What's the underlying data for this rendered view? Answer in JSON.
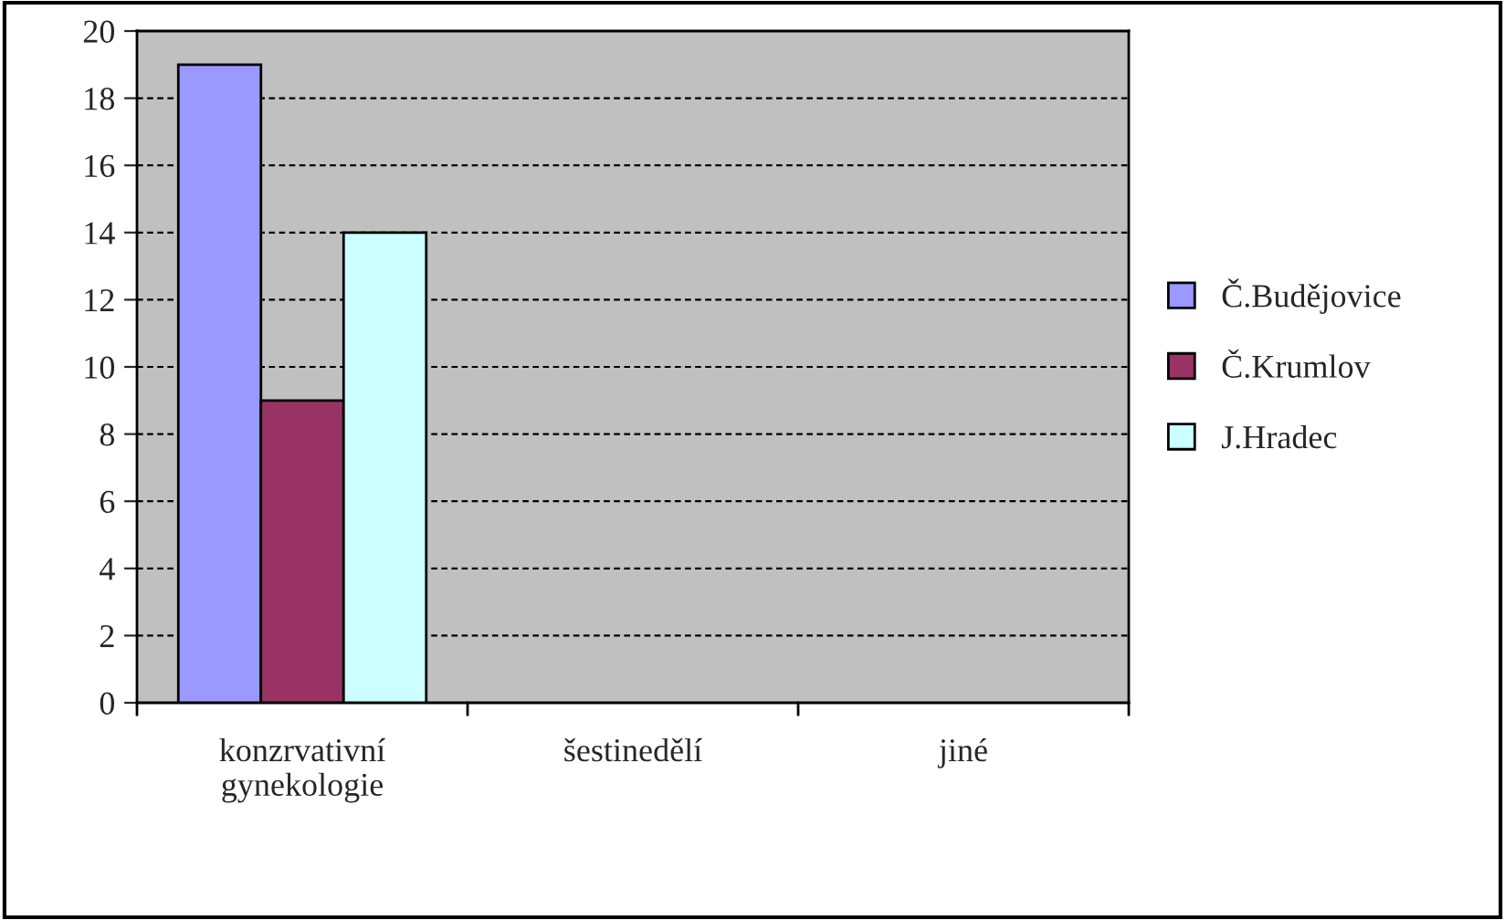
{
  "chart_data": {
    "type": "bar",
    "categories": [
      "konzrvativní\ngynekologie",
      "šestinedělí",
      "jiné"
    ],
    "series": [
      {
        "name": "Č.Budějovice",
        "color": "#9999ff",
        "values": [
          19,
          null,
          null
        ]
      },
      {
        "name": "Č.Krumlov",
        "color": "#993366",
        "values": [
          9,
          null,
          null
        ]
      },
      {
        "name": "J.Hradec",
        "color": "#ccffff",
        "values": [
          14,
          null,
          null
        ]
      }
    ],
    "ylim": [
      0,
      20
    ],
    "yticks": [
      0,
      2,
      4,
      6,
      8,
      10,
      12,
      14,
      16,
      18,
      20
    ],
    "grid": "y",
    "legend": "right"
  }
}
